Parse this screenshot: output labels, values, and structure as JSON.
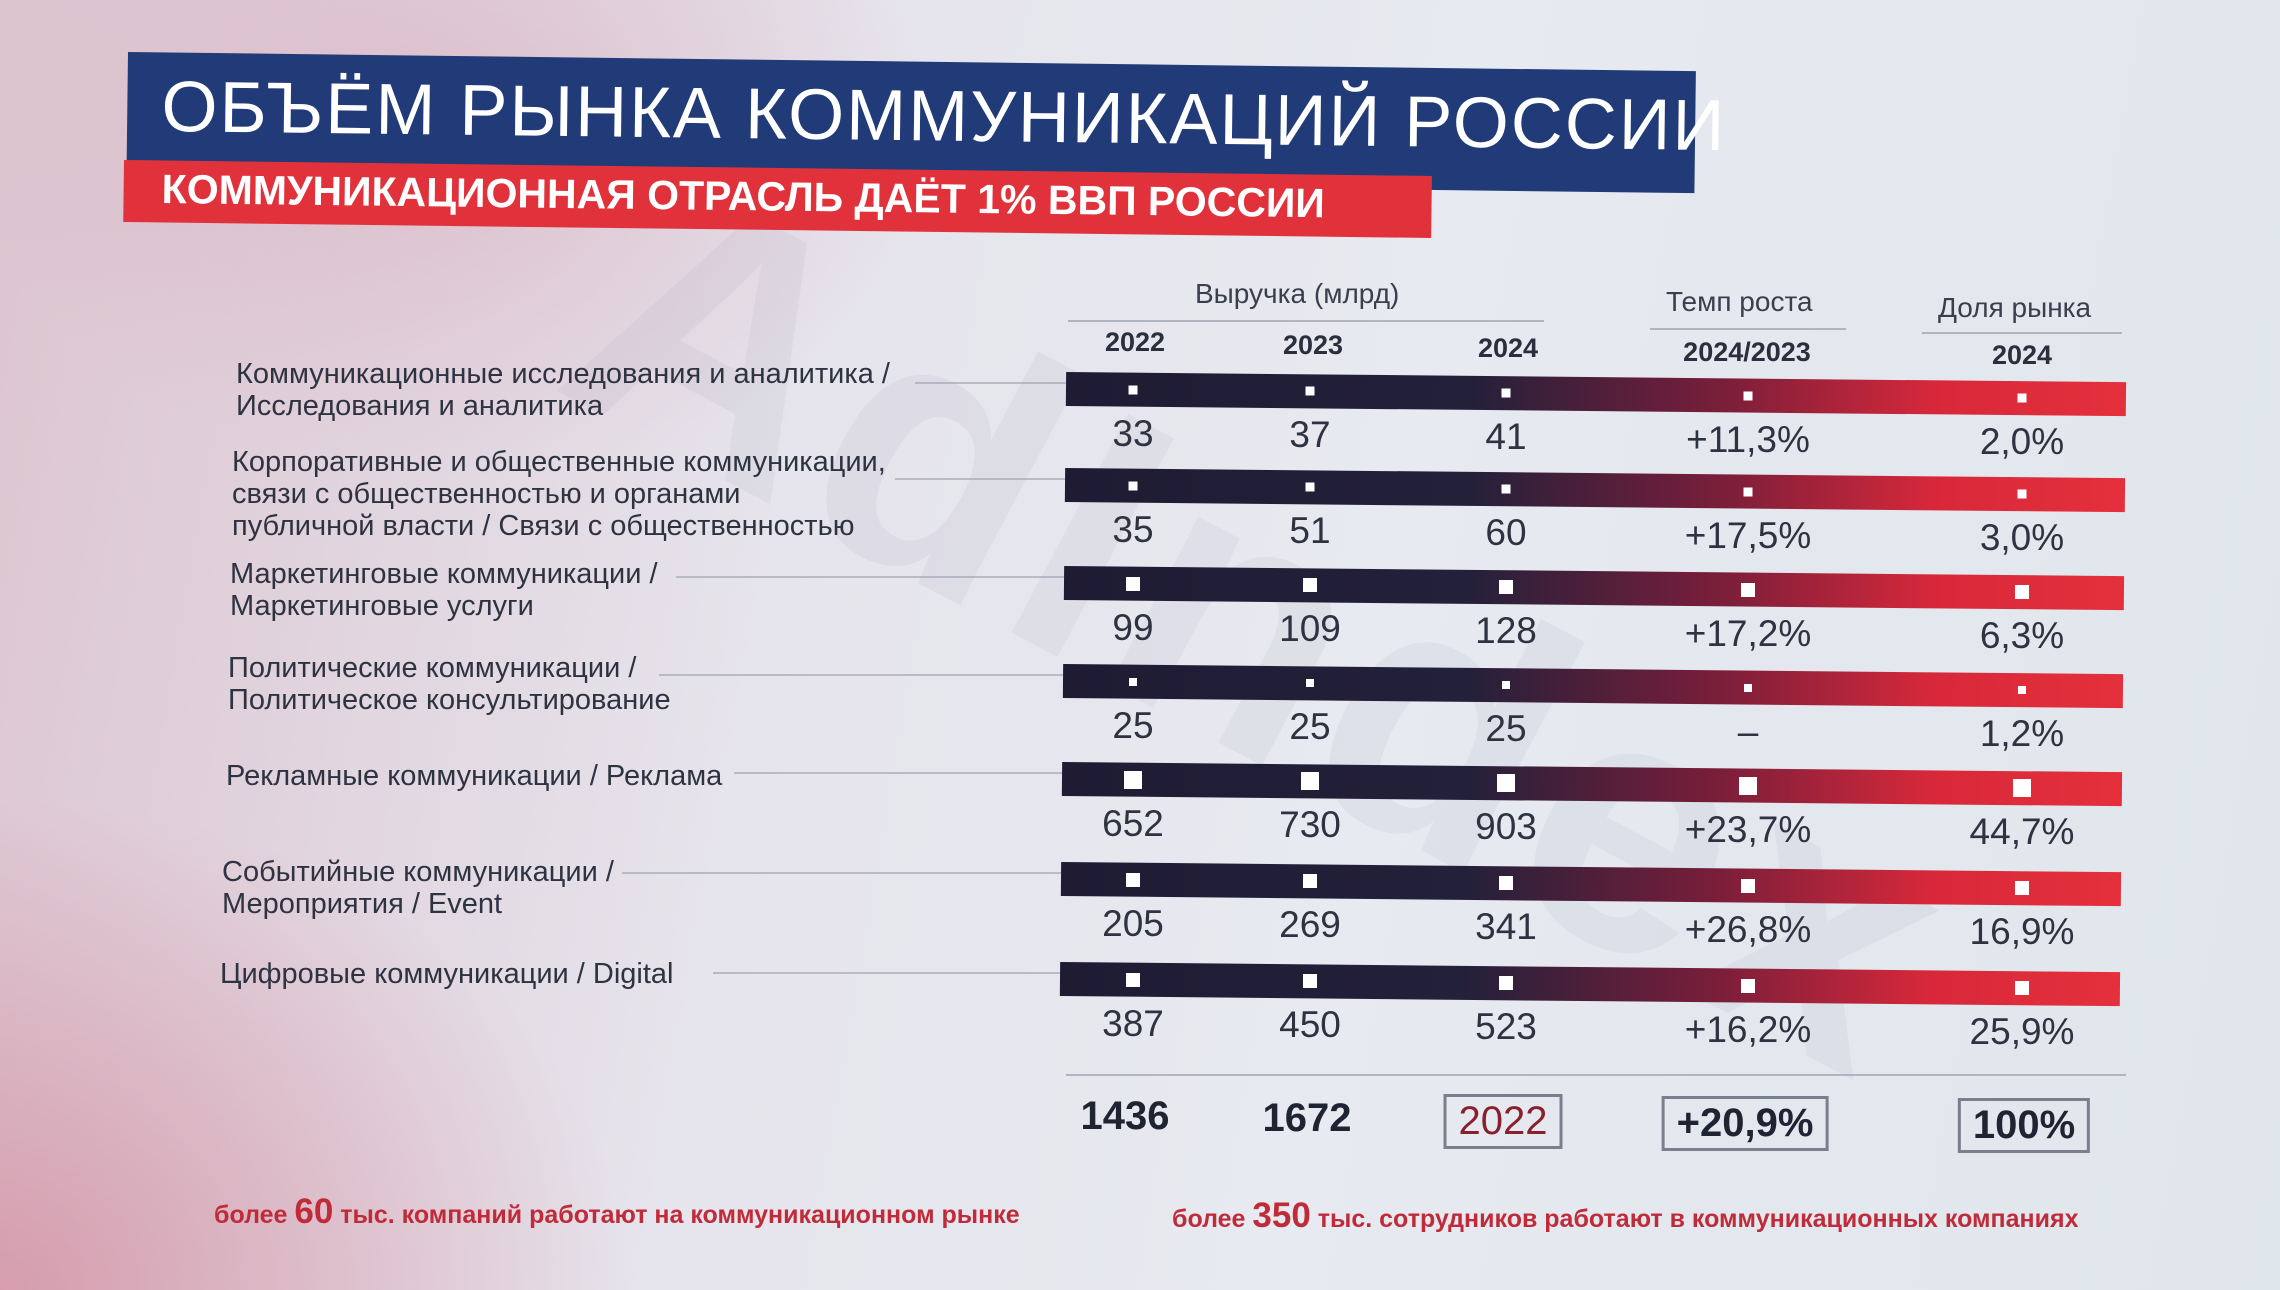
{
  "watermark": "AdIndex",
  "header": {
    "title": "ОБЪЁМ РЫНКА КОММУНИКАЦИЙ РОССИИ",
    "subtitle": "КОММУНИКАЦИОННАЯ ОТРАСЛЬ ДАЁТ 1% ВВП РОССИИ"
  },
  "columns": {
    "revenue_group": "Выручка (млрд)",
    "growth_group": "Темп роста",
    "share_group": "Доля рынка",
    "years": [
      "2022",
      "2023",
      "2024"
    ],
    "growth_period": "2024/2023",
    "share_year": "2024"
  },
  "rows": [
    {
      "label": [
        "Коммуникационные исследования и аналитика /",
        "Исследования и аналитика"
      ],
      "v2022": "33",
      "v2023": "37",
      "v2024": "41",
      "growth": "+11,3%",
      "share": "2,0%"
    },
    {
      "label": [
        "Корпоративные и общественные коммуникации,",
        "связи с общественностью и органами",
        "публичной власти / Связи с общественностью"
      ],
      "v2022": "35",
      "v2023": "51",
      "v2024": "60",
      "growth": "+17,5%",
      "share": "3,0%"
    },
    {
      "label": [
        "Маркетинговые коммуникации /",
        "Маркетинговые услуги"
      ],
      "v2022": "99",
      "v2023": "109",
      "v2024": "128",
      "growth": "+17,2%",
      "share": "6,3%"
    },
    {
      "label": [
        "Политические коммуникации /",
        "Политическое консультирование"
      ],
      "v2022": "25",
      "v2023": "25",
      "v2024": "25",
      "growth": "–",
      "share": "1,2%"
    },
    {
      "label": [
        "Рекламные коммуникации / Реклама"
      ],
      "v2022": "652",
      "v2023": "730",
      "v2024": "903",
      "growth": "+23,7%",
      "share": "44,7%"
    },
    {
      "label": [
        "Событийные коммуникации /",
        "Мероприятия / Event"
      ],
      "v2022": "205",
      "v2023": "269",
      "v2024": "341",
      "growth": "+26,8%",
      "share": "16,9%"
    },
    {
      "label": [
        "Цифровые коммуникации / Digital"
      ],
      "v2022": "387",
      "v2023": "450",
      "v2024": "523",
      "growth": "+16,2%",
      "share": "25,9%"
    }
  ],
  "totals": {
    "v2022": "1436",
    "v2023": "1672",
    "v2024": "2022",
    "growth": "+20,9%",
    "share": "100%"
  },
  "footer": {
    "left_pre": "более",
    "left_num": "60",
    "left_post": "тыс. компаний работают на коммуникационном рынке",
    "right_pre": "более",
    "right_num": "350",
    "right_post": "тыс. сотрудников работают в коммуникационных компаниях"
  },
  "colors": {
    "title_bg": "#213b78",
    "subtitle_bg": "#e1323c",
    "bar_dark": "#1e1b33",
    "bar_red": "#e5303c",
    "footer_text": "#c02b3a"
  }
}
